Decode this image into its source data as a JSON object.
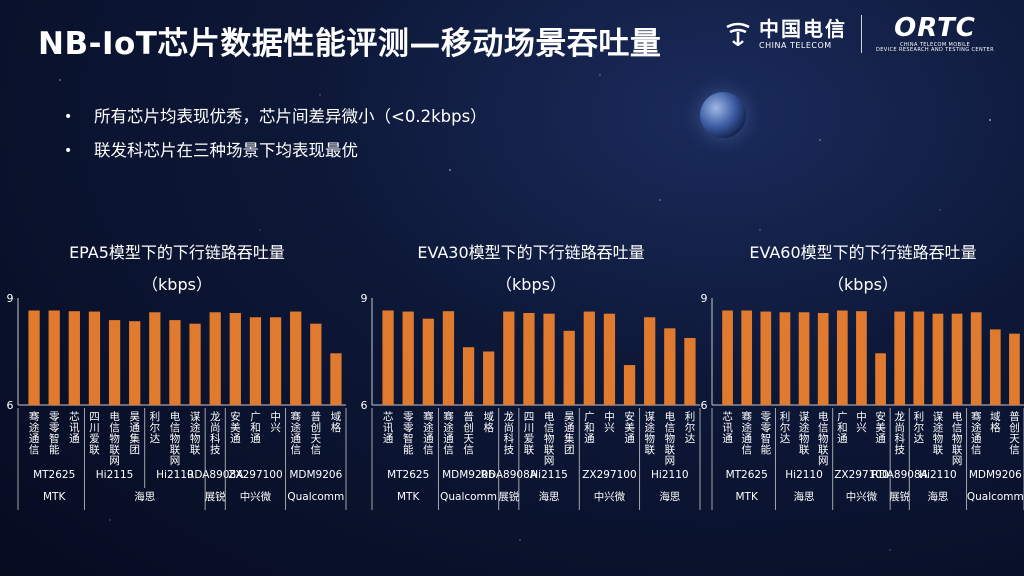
{
  "slide": {
    "title": "NB-IoT芯片数据性能评测—移动场景吞吐量",
    "bullets": [
      "所有芯片均表现优秀，芯片间差异微小（<0.2kbps）",
      "联发科芯片在三种场景下均表现最优"
    ],
    "logos": {
      "telecom_cn": "中国电信",
      "telecom_en": "CHINA TELECOM",
      "ortc_main": "ORTC",
      "ortc_sub1": "CHINA TELECOM MOBILE",
      "ortc_sub2": "DEVICE RESEARCH AND TESTING CENTER"
    }
  },
  "colors": {
    "bar": "#e07a2e",
    "axis": "#c9c9c9",
    "text": "#ffffff"
  },
  "chart_data": [
    {
      "type": "bar",
      "title": "EPA5模型下的下行链路吞吐量",
      "ylabel": "（kbps）",
      "ylim": [
        6,
        9
      ],
      "yticks": [
        "9",
        "6"
      ],
      "categories": [
        "骞途通信",
        "零零智能",
        "芯讯通",
        "四川爱联",
        "电信物联网",
        "昊通集团",
        "利尔达",
        "电信物联网",
        "谋途物联",
        "龙尚科技",
        "安美通",
        "广和通",
        "中兴",
        "骞途通信",
        "普创天信",
        "域格"
      ],
      "values": [
        8.65,
        8.65,
        8.63,
        8.62,
        8.38,
        8.35,
        8.6,
        8.38,
        8.28,
        8.6,
        8.58,
        8.46,
        8.46,
        8.62,
        8.28,
        7.45
      ],
      "models": [
        {
          "label": "MT2625",
          "span": 3
        },
        {
          "label": "Hi2115",
          "span": 3
        },
        {
          "label": "Hi2110",
          "span": 3
        },
        {
          "label": "RDA8908A",
          "span": 1
        },
        {
          "label": "ZX297100",
          "span": 3
        },
        {
          "label": "MDM9206",
          "span": 3
        }
      ],
      "vendors": [
        {
          "label": "MTK",
          "span": 3
        },
        {
          "label": "海思",
          "span": 6
        },
        {
          "label": "展锐",
          "span": 1
        },
        {
          "label": "中兴微",
          "span": 3
        },
        {
          "label": "Qualcomm",
          "span": 3
        }
      ]
    },
    {
      "type": "bar",
      "title": "EVA30模型下的下行链路吞吐量",
      "ylabel": "（kbps）",
      "ylim": [
        6,
        9
      ],
      "yticks": [
        "9",
        "6"
      ],
      "categories": [
        "芯讯通",
        "零零智能",
        "骞途通信",
        "骞途通信",
        "普创天信",
        "域格",
        "龙尚科技",
        "四川爱联",
        "电信物联网",
        "昊通集团",
        "广和通",
        "中兴",
        "安美通",
        "谋途物联",
        "电信物联网",
        "利尔达"
      ],
      "values": [
        8.65,
        8.62,
        8.42,
        8.63,
        7.62,
        7.5,
        8.62,
        8.58,
        8.56,
        8.08,
        8.62,
        8.56,
        7.12,
        8.46,
        8.15,
        7.88
      ],
      "models": [
        {
          "label": "MT2625",
          "span": 3
        },
        {
          "label": "MDM9206",
          "span": 3
        },
        {
          "label": "RDA8908A",
          "span": 1
        },
        {
          "label": "Hi2115",
          "span": 3
        },
        {
          "label": "ZX297100",
          "span": 3
        },
        {
          "label": "Hi2110",
          "span": 3
        }
      ],
      "vendors": [
        {
          "label": "MTK",
          "span": 3
        },
        {
          "label": "Qualcomm",
          "span": 3
        },
        {
          "label": "展锐",
          "span": 1
        },
        {
          "label": "海思",
          "span": 3
        },
        {
          "label": "中兴微",
          "span": 3
        },
        {
          "label": "海思",
          "span": 3
        }
      ]
    },
    {
      "type": "bar",
      "title": "EVA60模型下的下行链路吞吐量",
      "ylabel": "（kbps）",
      "ylim": [
        6,
        9
      ],
      "yticks": [
        "9",
        "6"
      ],
      "categories": [
        "芯讯通",
        "骞途通信",
        "零零智能",
        "利尔达",
        "谋途物联",
        "电信物联网",
        "广和通",
        "中兴",
        "安美通",
        "龙尚科技",
        "利尔达",
        "谋途物联",
        "电信物联网",
        "骞途通信",
        "域格",
        "普创天信"
      ],
      "values": [
        8.65,
        8.65,
        8.62,
        8.6,
        8.6,
        8.58,
        8.65,
        8.63,
        7.45,
        8.62,
        8.62,
        8.56,
        8.56,
        8.6,
        8.12,
        8.0
      ],
      "models": [
        {
          "label": "MT2625",
          "span": 3
        },
        {
          "label": "Hi2110",
          "span": 3
        },
        {
          "label": "ZX297100",
          "span": 3
        },
        {
          "label": "RDA8908A",
          "span": 1
        },
        {
          "label": "Hi2110",
          "span": 3
        },
        {
          "label": "MDM9206",
          "span": 3
        }
      ],
      "vendors": [
        {
          "label": "MTK",
          "span": 3
        },
        {
          "label": "海思",
          "span": 3
        },
        {
          "label": "中兴微",
          "span": 3
        },
        {
          "label": "展锐",
          "span": 1
        },
        {
          "label": "海思",
          "span": 3
        },
        {
          "label": "Qualcomm",
          "span": 3
        }
      ]
    }
  ]
}
